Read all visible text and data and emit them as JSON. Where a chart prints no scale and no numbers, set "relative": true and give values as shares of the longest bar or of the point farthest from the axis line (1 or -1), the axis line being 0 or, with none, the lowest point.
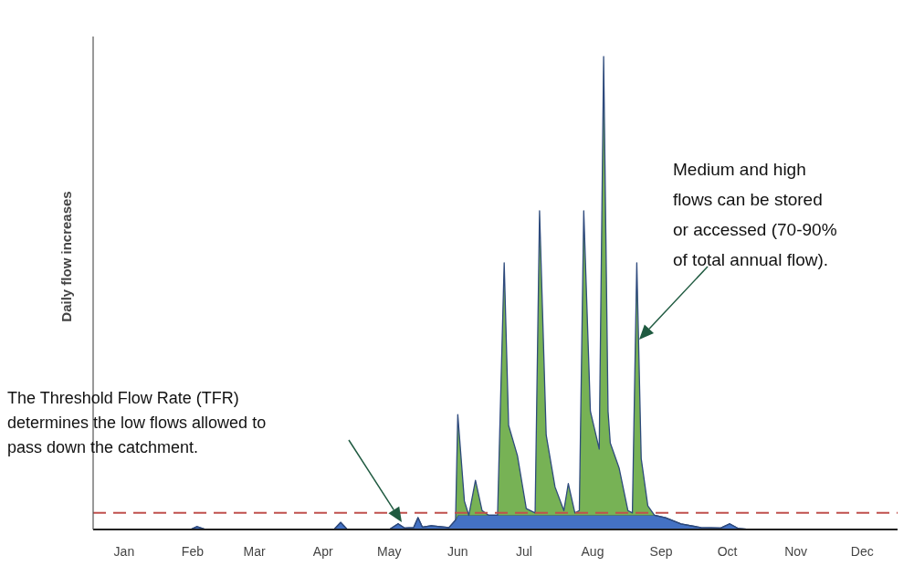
{
  "chart_data": {
    "type": "area",
    "stacked": true,
    "relative": true,
    "ylabel": "Daily flow increases",
    "xlim": [
      "--01-01",
      "--12-31"
    ],
    "xticks": [
      {
        "value": "--01-15",
        "label": "Jan"
      },
      {
        "value": "--02-15",
        "label": "Feb"
      },
      {
        "value": "--03-15",
        "label": "Mar"
      },
      {
        "value": "--04-15",
        "label": "Apr"
      },
      {
        "value": "--05-15",
        "label": "May"
      },
      {
        "value": "--06-15",
        "label": "Jun"
      },
      {
        "value": "--07-15",
        "label": "Jul"
      },
      {
        "value": "--08-15",
        "label": "Aug"
      },
      {
        "value": "--09-15",
        "label": "Sep"
      },
      {
        "value": "--10-15",
        "label": "Oct"
      },
      {
        "value": "--11-15",
        "label": "Nov"
      },
      {
        "value": "--12-15",
        "label": "Dec"
      }
    ],
    "x": [
      "--01-01",
      "--02-14",
      "--02-17",
      "--02-21",
      "--04-20",
      "--04-23",
      "--04-26",
      "--05-15",
      "--05-19",
      "--05-22",
      "--05-26",
      "--05-28",
      "--05-30",
      "--06-03",
      "--06-11",
      "--06-14",
      "--06-15",
      "--06-18",
      "--06-20",
      "--06-23",
      "--06-26",
      "--06-29",
      "--07-03",
      "--07-06",
      "--07-08",
      "--07-12",
      "--07-16",
      "--07-20",
      "--07-22",
      "--07-25",
      "--07-29",
      "--08-02",
      "--08-04",
      "--08-07",
      "--08-09",
      "--08-11",
      "--08-14",
      "--08-16",
      "--08-18",
      "--08-20",
      "--08-22",
      "--08-23",
      "--08-27",
      "--08-31",
      "--09-02",
      "--09-04",
      "--09-06",
      "--09-09",
      "--09-12",
      "--09-17",
      "--09-24",
      "--10-03",
      "--10-12",
      "--10-16",
      "--10-20",
      "--10-25",
      "--12-31"
    ],
    "series": [
      {
        "color": "#4472c4",
        "values": [
          0,
          0,
          0.006,
          0,
          0,
          0.015,
          0,
          0,
          0.012,
          0.003,
          0.004,
          0.025,
          0.005,
          0.008,
          0.004,
          0.02,
          0.03,
          0.03,
          0.03,
          0.03,
          0.03,
          0.03,
          0.03,
          0.03,
          0.03,
          0.03,
          0.03,
          0.03,
          0.03,
          0.03,
          0.03,
          0.03,
          0.03,
          0.03,
          0.03,
          0.03,
          0.03,
          0.03,
          0.03,
          0.03,
          0.03,
          0.03,
          0.03,
          0.03,
          0.03,
          0.03,
          0.03,
          0.03,
          0.03,
          0.025,
          0.012,
          0.004,
          0.003,
          0.012,
          0.002,
          0,
          0
        ]
      },
      {
        "color": "#77b255",
        "values": [
          0,
          0,
          0,
          0,
          0,
          0,
          0,
          0,
          0,
          0,
          0,
          0,
          0,
          0,
          0,
          0,
          0.213,
          0.03,
          0,
          0.074,
          0.01,
          0,
          0,
          0.534,
          0.19,
          0.126,
          0.014,
          0.005,
          0.644,
          0.17,
          0.06,
          0.01,
          0.067,
          0.005,
          0.01,
          0.644,
          0.22,
          0.18,
          0.14,
          0.97,
          0.22,
          0.153,
          0.1,
          0.01,
          0.005,
          0.534,
          0.12,
          0.02,
          0,
          0,
          0,
          0,
          0,
          0,
          0,
          0,
          0
        ]
      }
    ],
    "ref_lines": [
      {
        "axis": "y",
        "value": 0.035,
        "color": "#c0504d",
        "line_style": "dashed"
      }
    ],
    "annotations": [
      "The Threshold Flow Rate (TFR)\ndetermines the low flows allowed to\npass down the catchment.",
      "Medium and high\nflows can be stored\nor accessed (70-90%\nof total annual flow)."
    ]
  }
}
